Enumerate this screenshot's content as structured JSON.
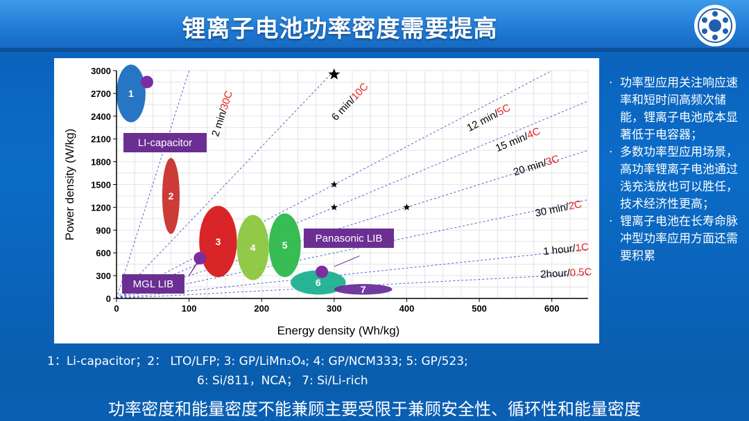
{
  "slide": {
    "title": "锂离子电池功率密度需要提高",
    "footer": "功率密度和能量密度不能兼顾主要受限于兼顾安全性、循环性和能量密度"
  },
  "side_notes": [
    "功率型应用关注响应速率和短时间高频次储能，锂离子电池成本显著低于电容器；",
    "多数功率型应用场景，高功率锂离子电池通过浅充浅放也可以胜任，技术经济性更高；",
    "锂离子电池在长寿命脉冲型功率应用方面还需要积累"
  ],
  "caption": {
    "line1": "1：Li-capacitor；2：  LTO/LFP; 3: GP/LiMn₂O₄; 4: GP/NCM333; 5: GP/523;",
    "line2": "6:  Si/811，NCA；  7:    Si/Li-rich"
  },
  "chart_data": {
    "type": "scatter",
    "xlabel": "Energy density (Wh/kg)",
    "ylabel": "Power density (W/kg)",
    "xlim": [
      0,
      650
    ],
    "ylim": [
      0,
      3000
    ],
    "xticks": [
      0,
      100,
      200,
      300,
      400,
      500,
      600
    ],
    "yticks": [
      0,
      300,
      600,
      900,
      1200,
      1500,
      1800,
      2100,
      2400,
      2700,
      3000
    ],
    "grid": true,
    "regions": [
      {
        "label": "1",
        "cx": 20,
        "cy": 2700,
        "rx": 20,
        "ry": 380,
        "color": "#1a6fc0"
      },
      {
        "label": "2",
        "cx": 75,
        "cy": 1350,
        "rx": 12,
        "ry": 500,
        "color": "#c9302c"
      },
      {
        "label": "3",
        "cx": 140,
        "cy": 750,
        "rx": 26,
        "ry": 470,
        "color": "#d7191c"
      },
      {
        "label": "4",
        "cx": 188,
        "cy": 670,
        "rx": 22,
        "ry": 430,
        "color": "#8cc63f"
      },
      {
        "label": "5",
        "cx": 232,
        "cy": 700,
        "rx": 22,
        "ry": 420,
        "color": "#2db84b"
      },
      {
        "label": "6",
        "cx": 278,
        "cy": 210,
        "rx": 38,
        "ry": 160,
        "color": "#1fb090"
      },
      {
        "label": "7",
        "cx": 340,
        "cy": 120,
        "rx": 40,
        "ry": 70,
        "color": "#6a2f9a"
      }
    ],
    "rate_lines": [
      {
        "time": "2 min/",
        "rate": "30C",
        "slope": 30
      },
      {
        "time": "6 min/",
        "rate": "10C",
        "slope": 10
      },
      {
        "time": "12 min/",
        "rate": "5C",
        "slope": 5
      },
      {
        "time": "15 min/",
        "rate": "4C",
        "slope": 4
      },
      {
        "time": "20 min/",
        "rate": "3C",
        "slope": 3
      },
      {
        "time": "30 min/",
        "rate": "2C",
        "slope": 2
      },
      {
        "time": "1 hour/",
        "rate": "1C",
        "slope": 1
      },
      {
        "time": "2hour/",
        "rate": "0.5C",
        "slope": 0.5
      }
    ],
    "stars": [
      {
        "x": 300,
        "y": 2950
      },
      {
        "x": 300,
        "y": 1500
      },
      {
        "x": 300,
        "y": 1200
      },
      {
        "x": 400,
        "y": 1200
      }
    ],
    "dots": [
      {
        "x": 42,
        "y": 2850
      },
      {
        "x": 115,
        "y": 530
      },
      {
        "x": 283,
        "y": 350
      }
    ],
    "annotations": [
      "LI-capacitor",
      "MGL LIB",
      "Panasonic LIB"
    ]
  }
}
